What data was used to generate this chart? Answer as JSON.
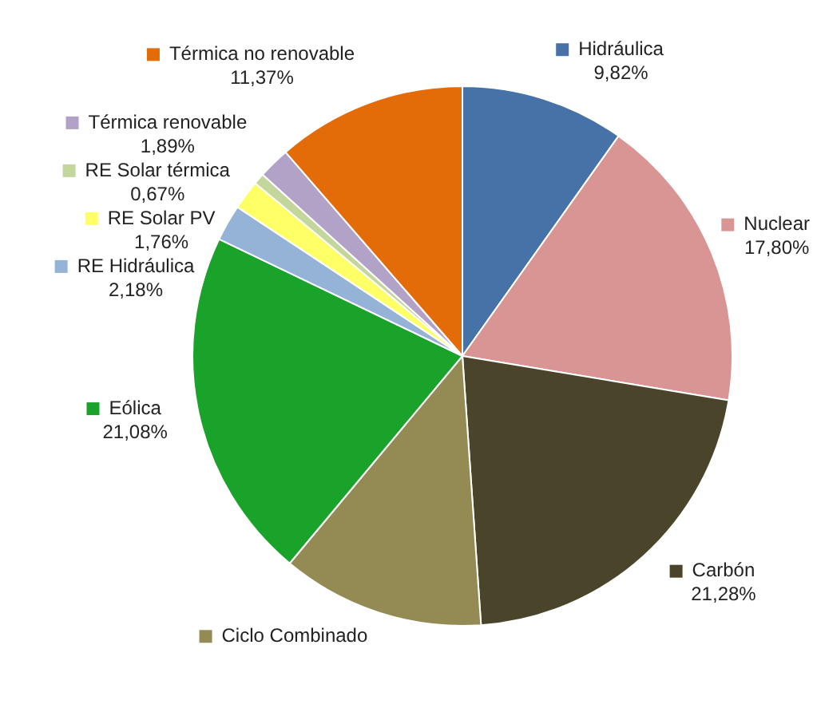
{
  "chart_data": {
    "type": "pie",
    "categories": [
      "Hidráulica",
      "Nuclear",
      "Carbón",
      "Ciclo Combinado",
      "Eólica",
      "RE Hidráulica",
      "RE Solar PV",
      "RE Solar térmica",
      "Térmica renovable",
      "Térmica no renovable"
    ],
    "values": [
      9.82,
      17.8,
      21.28,
      12.15,
      21.08,
      2.18,
      1.76,
      0.67,
      1.89,
      11.37
    ],
    "colors": [
      "#4672a8",
      "#d99594",
      "#4a452a",
      "#948a54",
      "#1aa32a",
      "#95b3d7",
      "#ffff66",
      "#c3d69b",
      "#b2a2c7",
      "#e36c09"
    ],
    "value_labels": [
      "9,82%",
      "17,80%",
      "21,28%",
      null,
      "21,08%",
      "2,18%",
      "1,76%",
      "0,67%",
      "1,89%",
      "11,37%"
    ],
    "legend": "left"
  }
}
